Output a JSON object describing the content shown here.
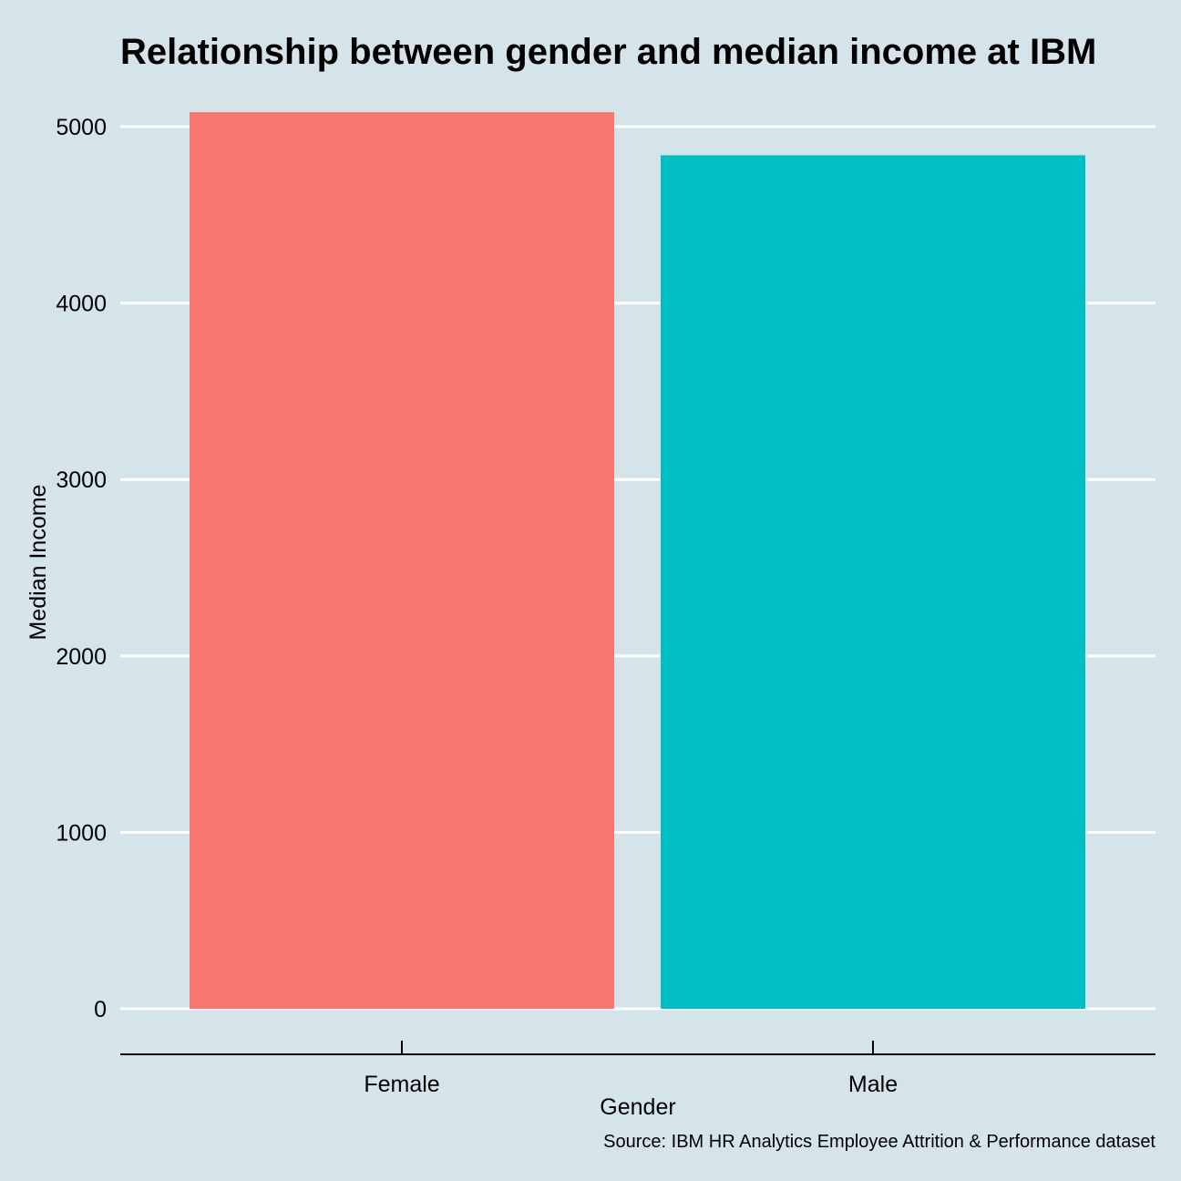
{
  "chart_data": {
    "type": "bar",
    "title": "Relationship between gender and median income at IBM",
    "xlabel": "Gender",
    "ylabel": "Median Income",
    "caption": "Source: IBM HR Analytics Employee Attrition & Performance dataset",
    "categories": [
      "Female",
      "Male"
    ],
    "values": [
      5082,
      4838
    ],
    "colors": [
      "#f8766d",
      "#00bfc4"
    ],
    "ylim": [
      0,
      5000
    ],
    "yticks": [
      0,
      1000,
      2000,
      3000,
      4000,
      5000
    ],
    "grid": true,
    "legend": "none"
  },
  "theme": {
    "background": "#d5e4eb",
    "gridline": "#ffffff",
    "axis_line": "#000000"
  }
}
